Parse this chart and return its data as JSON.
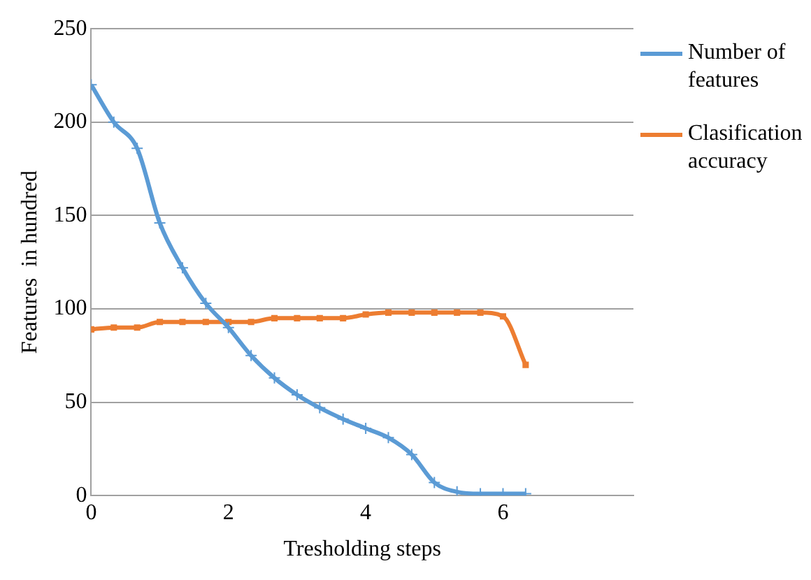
{
  "chart_data": {
    "type": "line",
    "xlabel": "Tresholding steps",
    "ylabel": "Features  in hundred",
    "x": [
      0,
      0.33,
      0.67,
      1,
      1.33,
      1.67,
      2,
      2.33,
      2.67,
      3,
      3.33,
      3.67,
      4,
      4.33,
      4.67,
      5,
      5.33,
      5.67,
      6,
      6.33
    ],
    "series": [
      {
        "name": "Number of features",
        "color": "#5b9bd5",
        "marker": "cross",
        "values": [
          220,
          200,
          186,
          146,
          122,
          103,
          90,
          75,
          63,
          54,
          47,
          41,
          36,
          31,
          22,
          7,
          2,
          1,
          1,
          1
        ]
      },
      {
        "name": "Clasification accuracy",
        "color": "#ed7d31",
        "marker": "square",
        "values": [
          89,
          90,
          90,
          93,
          93,
          93,
          93,
          93,
          95,
          95,
          95,
          95,
          97,
          98,
          98,
          98,
          98,
          98,
          96,
          70
        ]
      }
    ],
    "xlim": [
      0,
      7.9
    ],
    "xticks": [
      0,
      2,
      4,
      6
    ],
    "ylim": [
      0,
      250
    ],
    "yticks": [
      0,
      50,
      100,
      150,
      200,
      250
    ],
    "grid": "y",
    "legend": "right",
    "line_style": "solid"
  }
}
